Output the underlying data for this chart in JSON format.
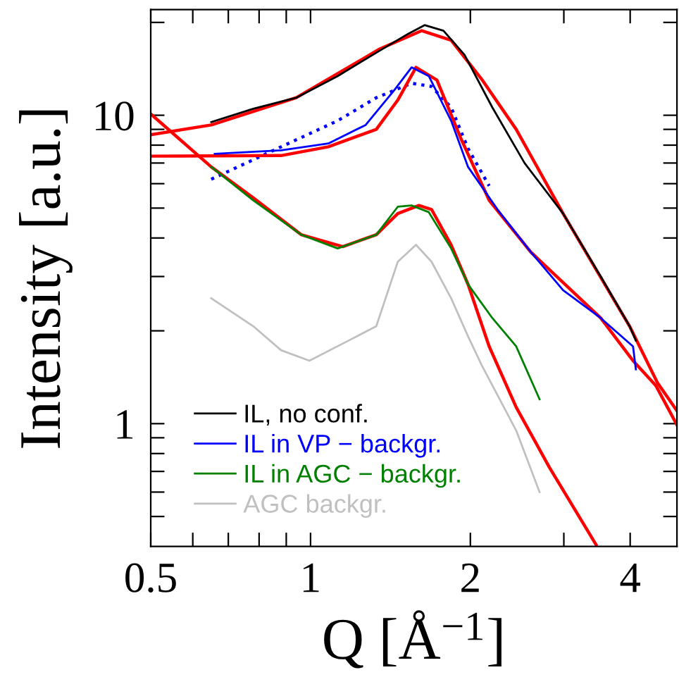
{
  "chart_data": {
    "type": "line",
    "xlabel": "Q [Å$^{−1}$]",
    "ylabel": "Intensity [a.u.]",
    "log": "xy",
    "legend": "bottom left",
    "grid": false,
    "xlim": [
      0.5,
      4.9
    ],
    "ylim": [
      0.4,
      22
    ],
    "xticks": [
      0.5,
      {
        "value": 0.6,
        "label": null
      },
      {
        "value": 0.7,
        "label": null
      },
      {
        "value": 0.8,
        "label": null
      },
      {
        "value": 0.9,
        "label": null
      },
      1,
      2,
      {
        "value": 3,
        "label": null
      },
      4
    ],
    "yticks": [
      {
        "value": 0.5,
        "label": null
      },
      {
        "value": 0.6,
        "label": null
      },
      {
        "value": 0.7,
        "label": null
      },
      {
        "value": 0.8,
        "label": null
      },
      {
        "value": 0.9,
        "label": null
      },
      1,
      {
        "value": 2,
        "label": null
      },
      {
        "value": 3,
        "label": null
      },
      {
        "value": 4,
        "label": null
      },
      {
        "value": 5,
        "label": null
      },
      {
        "value": 6,
        "label": null
      },
      {
        "value": 7,
        "label": null
      },
      {
        "value": 8,
        "label": null
      },
      {
        "value": 9,
        "label": null
      },
      10,
      {
        "value": 20,
        "label": null
      }
    ],
    "series": [
      {
        "name": "IL, no conf.",
        "color": "#000000",
        "x": [
          0.65,
          0.78,
          0.94,
          1.125,
          1.35,
          1.53,
          1.64,
          1.78,
          1.95,
          2.2,
          2.53,
          2.99,
          3.52,
          3.99,
          4.1
        ],
        "values": [
          9.5,
          10.5,
          11.4,
          13.4,
          16.2,
          18.4,
          19.6,
          18.8,
          15.7,
          10.6,
          7.0,
          4.8,
          3.0,
          2.07,
          1.86
        ]
      },
      {
        "name": "IL in VP − backgr.",
        "color": "#0000ff",
        "x": [
          0.66,
          0.88,
          1.08,
          1.27,
          1.44,
          1.55,
          1.67,
          1.84,
          1.98,
          2.25,
          2.6,
          2.99,
          3.52,
          4.05,
          4.1
        ],
        "values": [
          7.5,
          7.7,
          8.1,
          9.3,
          12.1,
          14.3,
          13.4,
          9.6,
          6.8,
          4.95,
          3.6,
          2.71,
          2.2,
          1.78,
          1.5
        ]
      },
      {
        "name": "IL in AGC − backgr.",
        "color": "#008000",
        "x": [
          0.65,
          0.78,
          0.96,
          1.125,
          1.33,
          1.46,
          1.55,
          1.67,
          1.84,
          1.98,
          2.2,
          2.44,
          2.7
        ],
        "values": [
          6.8,
          5.3,
          4.1,
          3.7,
          4.1,
          5.05,
          5.1,
          4.85,
          3.7,
          2.83,
          2.2,
          1.78,
          1.2
        ]
      },
      {
        "name": "AGC backgr.",
        "color": "#c0c0c0",
        "x": [
          0.65,
          0.78,
          0.88,
          0.995,
          1.18,
          1.33,
          1.46,
          1.58,
          1.69,
          1.84,
          1.98,
          2.1,
          2.44,
          2.7
        ],
        "values": [
          2.55,
          2.07,
          1.73,
          1.6,
          1.86,
          2.07,
          3.35,
          3.8,
          3.35,
          2.55,
          1.92,
          1.55,
          0.95,
          0.6
        ]
      },
      {
        "color": "#0000ff",
        "line_style": "dotted",
        "x": [
          0.65,
          0.88,
          1.125,
          1.33,
          1.55,
          1.69,
          1.84,
          1.98,
          2.17
        ],
        "values": [
          6.2,
          7.9,
          9.6,
          11.4,
          12.7,
          12.4,
          10.6,
          7.8,
          5.9
        ]
      },
      {
        "color": "#ff0000",
        "x": [
          0.5,
          0.65,
          0.94,
          1.35,
          1.62,
          1.84,
          2.1,
          2.44,
          2.99,
          3.99,
          4.5,
          4.9
        ],
        "values": [
          8.65,
          9.3,
          11.4,
          16.4,
          18.8,
          17.5,
          13.1,
          9.0,
          4.8,
          2.07,
          1.36,
          1.1
        ]
      },
      {
        "color": "#ff0000",
        "x": [
          0.5,
          0.88,
          1.08,
          1.33,
          1.46,
          1.58,
          1.73,
          1.92,
          2.17,
          2.6,
          3.52,
          4.05,
          4.47,
          4.9
        ],
        "values": [
          7.37,
          7.4,
          7.9,
          9.0,
          11.2,
          14.3,
          13.0,
          8.4,
          5.3,
          3.6,
          2.2,
          1.6,
          1.33,
          0.99
        ]
      },
      {
        "color": "#ff0000",
        "x": [
          0.5,
          0.65,
          0.78,
          0.96,
          1.15,
          1.33,
          1.46,
          1.6,
          1.69,
          1.84,
          1.98,
          2.17,
          2.44,
          2.82,
          3.45
        ],
        "values": [
          10.1,
          6.8,
          5.4,
          4.1,
          3.75,
          4.1,
          4.8,
          5.1,
          4.95,
          3.8,
          2.83,
          1.78,
          1.13,
          0.72,
          0.405
        ]
      }
    ]
  }
}
